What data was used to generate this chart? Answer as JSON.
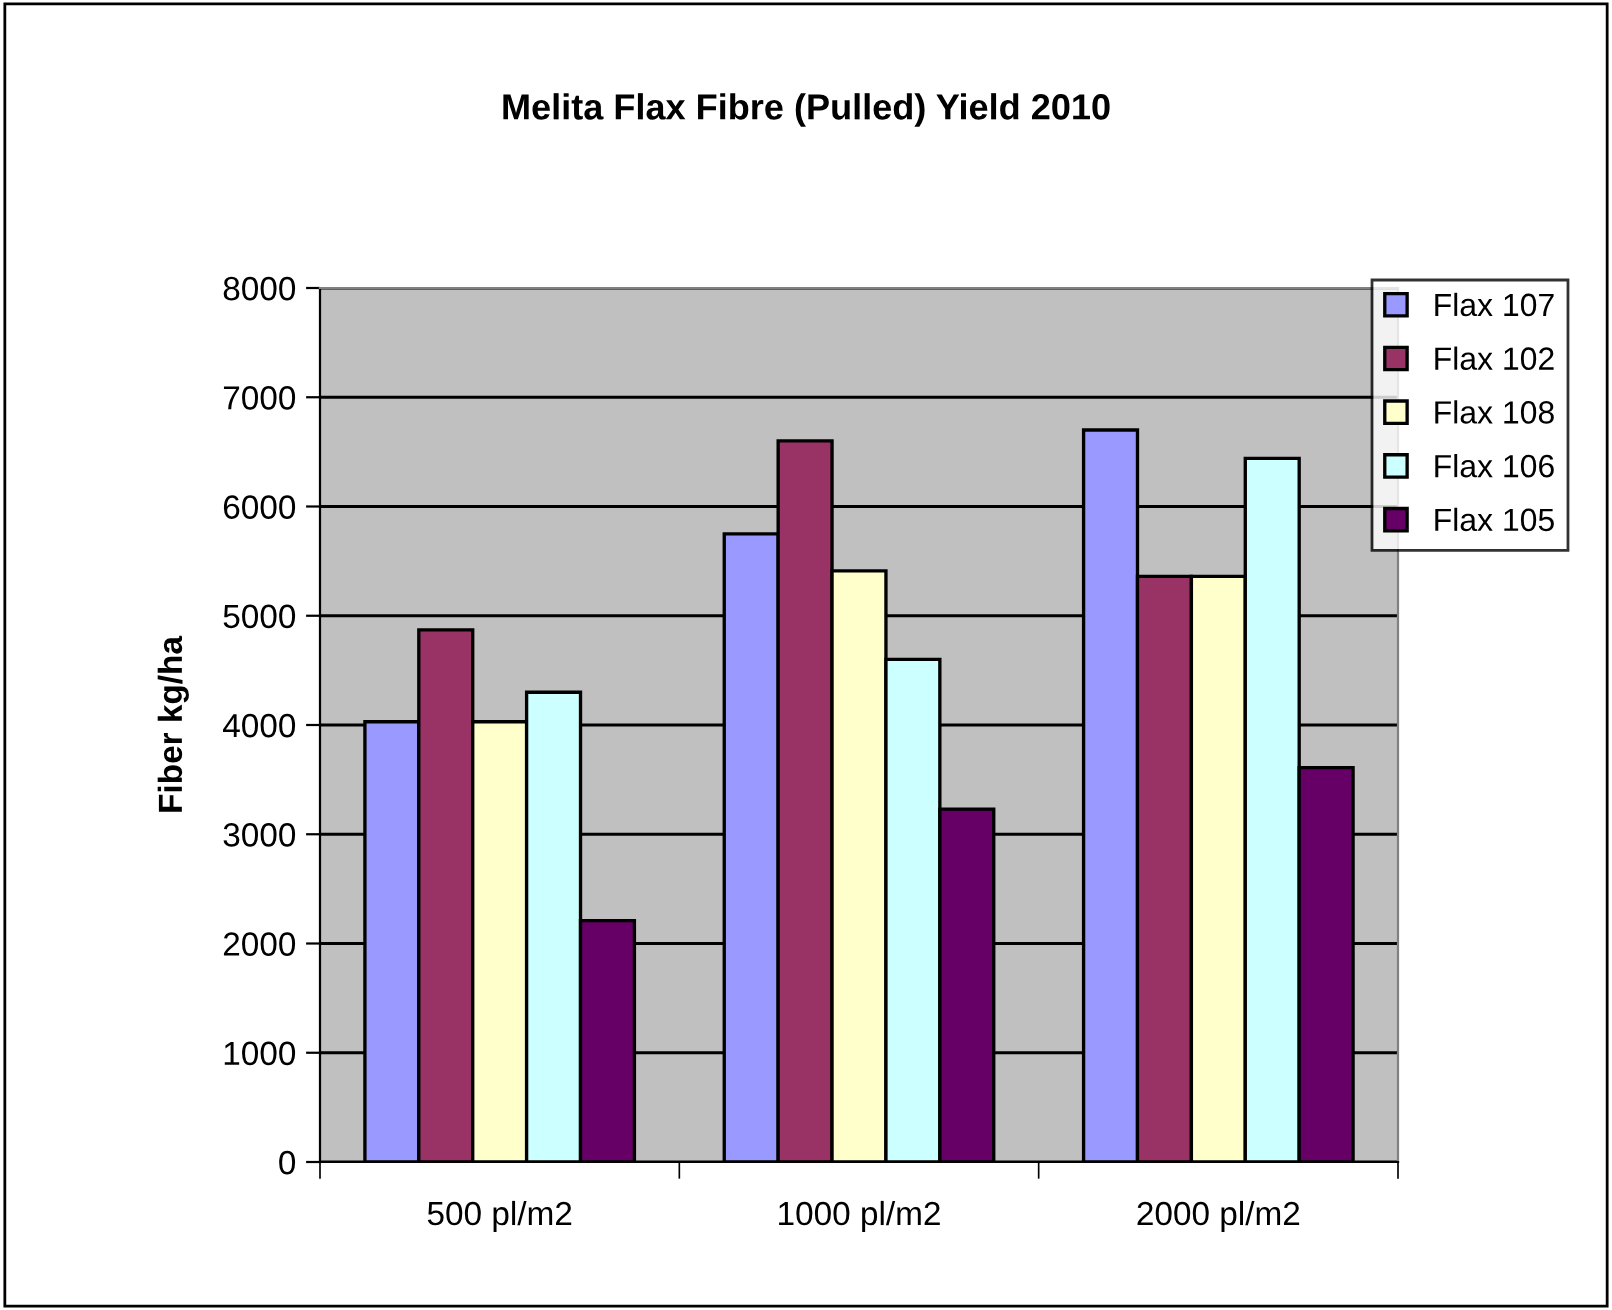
{
  "chart_data": {
    "type": "bar",
    "title": "Melita Flax Fibre (Pulled) Yield 2010",
    "ylabel": "Fiber kg/ha",
    "categories": [
      "500 pl/m2",
      "1000 pl/m2",
      "2000 pl/m2"
    ],
    "series": [
      {
        "name": "Flax 107",
        "color": "#9999ff",
        "values": [
          4030,
          5750,
          6700
        ]
      },
      {
        "name": "Flax 102",
        "color": "#993366",
        "values": [
          4870,
          6600,
          5360
        ]
      },
      {
        "name": "Flax 108",
        "color": "#ffffcc",
        "values": [
          4030,
          5410,
          5360
        ]
      },
      {
        "name": "Flax 106",
        "color": "#ccffff",
        "values": [
          4300,
          4600,
          6440
        ]
      },
      {
        "name": "Flax 105",
        "color": "#660066",
        "values": [
          2210,
          3230,
          3610
        ]
      }
    ],
    "ylim": [
      0,
      8000
    ],
    "yticks": [
      0,
      1000,
      2000,
      3000,
      4000,
      5000,
      6000,
      7000,
      8000
    ],
    "grid": "y",
    "legend": "top right"
  }
}
